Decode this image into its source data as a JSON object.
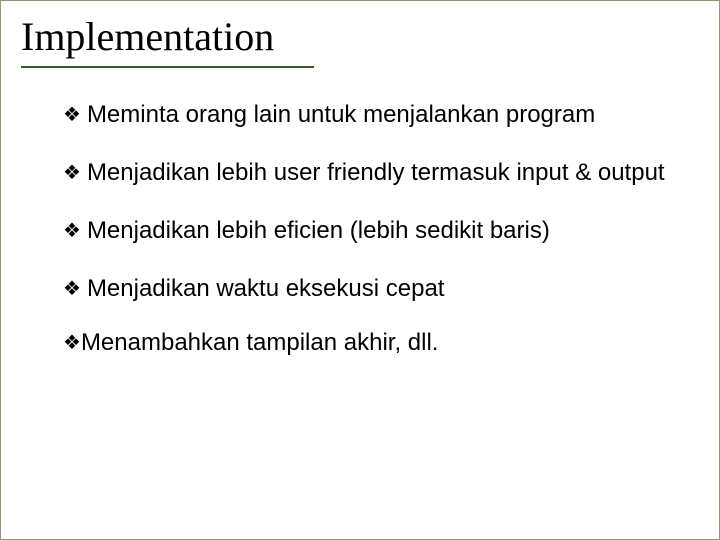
{
  "title": "Implementation",
  "bullets": [
    {
      "glyph": "❖",
      "text": " Meminta orang lain untuk menjalankan program"
    },
    {
      "glyph": "❖",
      "text": " Menjadikan lebih user friendly termasuk input & output"
    },
    {
      "glyph": "❖",
      "text": " Menjadikan lebih eficien (lebih sedikit baris)"
    },
    {
      "glyph": "❖",
      "text": " Menjadikan waktu eksekusi cepat"
    },
    {
      "glyph": "❖",
      "text": "Menambahkan tampilan akhir, dll."
    }
  ],
  "colors": {
    "underline": "#3a5a2a",
    "border": "#8a9b7a",
    "text": "#000000",
    "background": "#ffffff"
  },
  "typography": {
    "title_font": "Times New Roman",
    "title_size_pt": 30,
    "body_font": "Arial",
    "body_size_pt": 18
  }
}
